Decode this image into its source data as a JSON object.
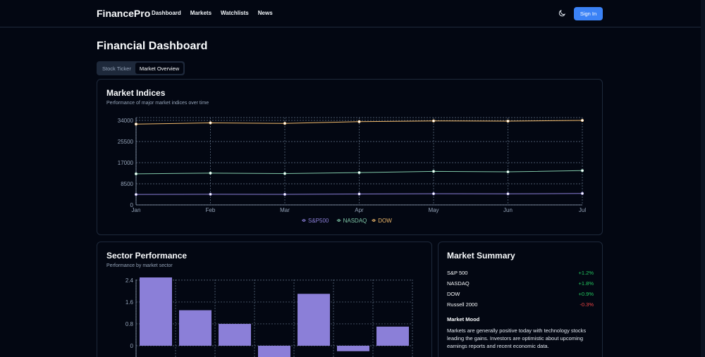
{
  "nav": {
    "brand": "FinancePro",
    "links": [
      "Dashboard",
      "Markets",
      "Watchlists",
      "News"
    ],
    "signin": "Sign In",
    "theme_icon": "moon-icon"
  },
  "page": {
    "title": "Financial Dashboard",
    "tabs": [
      "Stock Ticker",
      "Market Overview"
    ],
    "active_tab": "Market Overview"
  },
  "indices": {
    "title": "Market Indices",
    "subtitle": "Performance of major market indices over time"
  },
  "sector": {
    "title": "Sector Performance",
    "subtitle": "Performance by market sector"
  },
  "summary": {
    "title": "Market Summary",
    "rows": [
      {
        "name": "S&P 500",
        "change": "+1.2%",
        "color": "#22c55e"
      },
      {
        "name": "NASDAQ",
        "change": "+1.8%",
        "color": "#22c55e"
      },
      {
        "name": "DOW",
        "change": "+0.9%",
        "color": "#22c55e"
      },
      {
        "name": "Russell 2000",
        "change": "-0.3%",
        "color": "#ef4444"
      }
    ],
    "mood_title": "Market Mood",
    "mood_text": "Markets are generally positive today with technology stocks leading the gains. Investors are optimistic about upcoming earnings reports and recent economic data."
  },
  "chart_data": [
    {
      "type": "line",
      "x": [
        "Jan",
        "Feb",
        "Mar",
        "Apr",
        "May",
        "Jun",
        "Jul"
      ],
      "ylim": [
        0,
        34000
      ],
      "yticks": [
        "0",
        "8500",
        "17000",
        "25500",
        "34000"
      ],
      "series": [
        {
          "name": "S&P500",
          "color": "#8b7fd8",
          "values": [
            4200,
            4300,
            4250,
            4400,
            4500,
            4450,
            4600
          ]
        },
        {
          "name": "NASDAQ",
          "color": "#7fc7a8",
          "values": [
            12500,
            12800,
            12600,
            13000,
            13500,
            13300,
            13800
          ]
        },
        {
          "name": "DOW",
          "color": "#f0b96b",
          "values": [
            32500,
            33000,
            32800,
            33500,
            33800,
            33700,
            34000
          ]
        }
      ],
      "legend": "bottom",
      "grid": true
    },
    {
      "type": "bar",
      "categories": [
        "",
        "",
        "",
        "",
        "",
        "",
        ""
      ],
      "values": [
        2.5,
        1.3,
        0.8,
        -0.5,
        1.9,
        -0.2,
        0.7
      ],
      "ylim": [
        -0.6,
        2.5
      ],
      "yticks": [
        "0",
        "0.8",
        "1.6",
        "2.4"
      ],
      "color": "#8b7fd8",
      "grid": true
    }
  ]
}
